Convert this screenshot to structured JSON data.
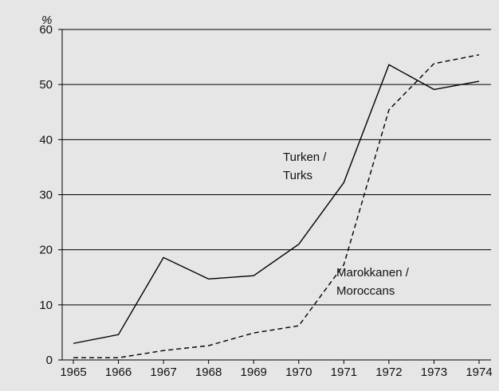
{
  "chart_data": {
    "type": "line",
    "y_unit": "%",
    "categories": [
      "1965",
      "1966",
      "1967",
      "1968",
      "1969",
      "1970",
      "1971",
      "1972",
      "1973",
      "1974"
    ],
    "series": [
      {
        "name": [
          "Turken /",
          "Turks"
        ],
        "color": "#000000",
        "dashed": false,
        "values": [
          3.0,
          4.6,
          18.6,
          14.7,
          15.3,
          21.0,
          32.2,
          53.6,
          49.1,
          50.6
        ]
      },
      {
        "name": [
          "Marokkanen /",
          "Moroccans"
        ],
        "color": "#000000",
        "dashed": true,
        "values": [
          0.4,
          0.4,
          1.7,
          2.6,
          4.9,
          6.2,
          17.3,
          45.4,
          53.8,
          55.4
        ]
      }
    ],
    "ylim": [
      0,
      60
    ],
    "yticks": [
      0,
      10,
      20,
      30,
      40,
      50,
      60
    ],
    "grid": true
  }
}
